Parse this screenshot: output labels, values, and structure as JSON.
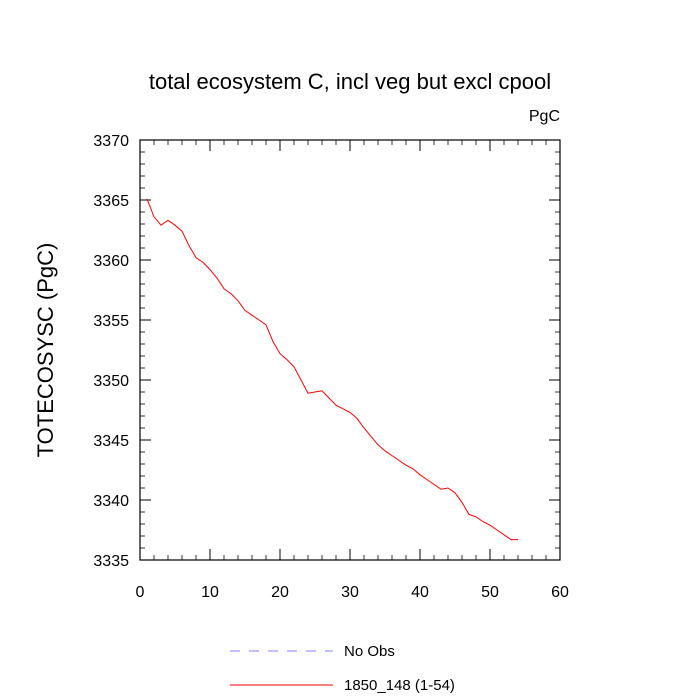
{
  "chart_data": {
    "type": "line",
    "title": "total ecosystem C, incl veg but excl cpool",
    "units": "PgC",
    "xlabel": "",
    "ylabel": "TOTECOSYSC  (PgC)",
    "xlim": [
      0,
      60
    ],
    "ylim": [
      3335,
      3370
    ],
    "xticks": [
      0,
      10,
      20,
      30,
      40,
      50,
      60
    ],
    "yticks": [
      3335,
      3340,
      3345,
      3350,
      3355,
      3360,
      3365,
      3370
    ],
    "legend_position": "bottom",
    "series": [
      {
        "name": "No Obs",
        "color": "#8080ff",
        "style": "dashed",
        "x": [],
        "y": []
      },
      {
        "name": "1850_148 (1-54)",
        "color": "#ff0000",
        "style": "solid",
        "x": [
          1,
          2,
          3,
          4,
          5,
          6,
          7,
          8,
          9,
          10,
          11,
          12,
          13,
          14,
          15,
          16,
          17,
          18,
          19,
          20,
          21,
          22,
          23,
          24,
          25,
          26,
          27,
          28,
          29,
          30,
          31,
          32,
          33,
          34,
          35,
          36,
          37,
          38,
          39,
          40,
          41,
          42,
          43,
          44,
          45,
          46,
          47,
          48,
          49,
          50,
          51,
          52,
          53,
          54
        ],
        "y": [
          3365.1,
          3363.6,
          3362.9,
          3363.3,
          3362.9,
          3362.4,
          3361.2,
          3360.2,
          3359.8,
          3359.2,
          3358.5,
          3357.6,
          3357.2,
          3356.6,
          3355.8,
          3355.4,
          3355.0,
          3354.6,
          3353.2,
          3352.2,
          3351.7,
          3351.1,
          3350.0,
          3348.9,
          3349.0,
          3349.1,
          3348.5,
          3347.9,
          3347.6,
          3347.3,
          3346.8,
          3346.0,
          3345.3,
          3344.6,
          3344.1,
          3343.7,
          3343.3,
          3342.9,
          3342.6,
          3342.1,
          3341.7,
          3341.3,
          3340.9,
          3341.0,
          3340.6,
          3339.8,
          3338.8,
          3338.6,
          3338.2,
          3337.9,
          3337.5,
          3337.1,
          3336.7,
          3336.7
        ]
      }
    ]
  }
}
